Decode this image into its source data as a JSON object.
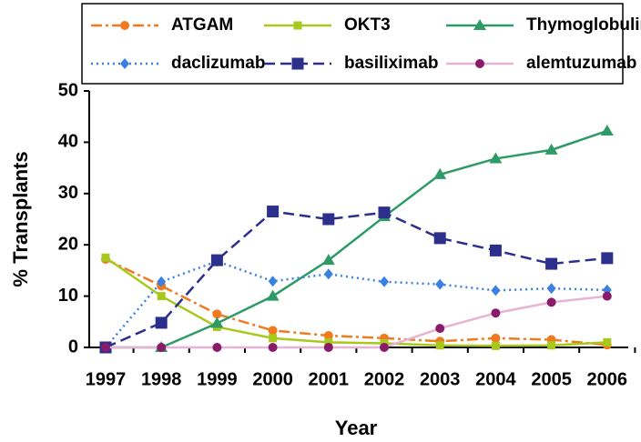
{
  "chart_data": {
    "type": "line",
    "y_label": "% Transplants",
    "x_label": "Year",
    "categories": [
      "1997",
      "1998",
      "1999",
      "2000",
      "2001",
      "2002",
      "2003",
      "2004",
      "2005",
      "2006"
    ],
    "ylim": [
      0,
      50
    ],
    "yticks": [
      0,
      10,
      20,
      30,
      40,
      50
    ],
    "series": [
      {
        "name": "ATGAM",
        "color": "#f07a20",
        "marker": "circle",
        "dash": "12 4 3 4",
        "values": [
          17.2,
          12,
          6.5,
          3.3,
          2.3,
          1.8,
          1.2,
          1.8,
          1.5,
          0.5
        ]
      },
      {
        "name": "OKT3",
        "color": "#a8c81e",
        "marker": "square",
        "dash": "none",
        "values": [
          17.5,
          10,
          4,
          1.8,
          1,
          0.8,
          0.4,
          0.3,
          0.4,
          1
        ]
      },
      {
        "name": "Thymoglobulin",
        "color": "#2e9a68",
        "marker": "triangle",
        "dash": "none",
        "values": [
          0,
          0,
          4.7,
          10,
          17,
          25.5,
          33.7,
          36.8,
          38.5,
          42.2
        ]
      },
      {
        "name": "daclizumab",
        "color": "#3a80e0",
        "marker": "diamond",
        "dash": "2 4",
        "values": [
          0,
          12.8,
          16.8,
          12.9,
          14.3,
          12.8,
          12.3,
          11.1,
          11.5,
          11.2
        ]
      },
      {
        "name": "basiliximab",
        "color": "#2c2f8c",
        "marker": "bigsquare",
        "dash": "12 6",
        "values": [
          0,
          4.8,
          17,
          26.5,
          25,
          26.3,
          21.3,
          18.9,
          16.3,
          17.4
        ]
      },
      {
        "name": "alemtuzumab",
        "color": "#e8b4d4",
        "marker_color": "#8a1a6a",
        "marker": "circle",
        "dash": "none",
        "values": [
          0,
          0,
          0,
          0,
          0,
          0,
          3.7,
          6.7,
          8.8,
          10
        ]
      }
    ]
  }
}
